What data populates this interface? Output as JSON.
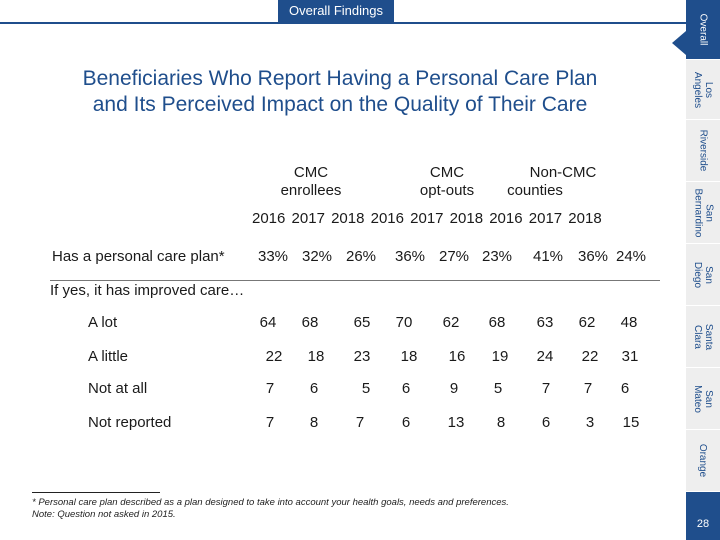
{
  "header": {
    "section_tab": "Overall Findings"
  },
  "title": {
    "line1": "Beneficiaries Who Report Having a Personal Care Plan",
    "line2": "and Its Perceived Impact on the Quality of Their Care"
  },
  "groups": [
    {
      "line1": "CMC",
      "line2": "enrollees"
    },
    {
      "line1": "CMC",
      "line2": "opt-outs"
    },
    {
      "line1": "Non-CMC",
      "line2": "counties"
    }
  ],
  "years_row": "2016 2017 2018 2016 2017 2018 2016 2017 2018",
  "plan_row": {
    "label": "Has a personal care plan*",
    "values": [
      "33%",
      "32%",
      "26%",
      "36%",
      "27%",
      "23%",
      "41%",
      "36%",
      "24%"
    ]
  },
  "subheading": "If yes, it has improved care…",
  "rows": [
    {
      "label": "A lot",
      "values": [
        "64",
        "68",
        "65",
        "70",
        "62",
        "68",
        "63",
        "62",
        "48"
      ]
    },
    {
      "label": "A little",
      "values": [
        "22",
        "18",
        "23",
        "18",
        "16",
        "19",
        "24",
        "22",
        "31"
      ]
    },
    {
      "label": "Not at all",
      "values": [
        "7",
        "6",
        "5",
        "6",
        "9",
        "5",
        "7",
        "7",
        "6"
      ]
    },
    {
      "label": "Not reported",
      "values": [
        "7",
        "8",
        "7",
        "6",
        "13",
        "8",
        "6",
        "3",
        "15"
      ]
    }
  ],
  "footnotes": {
    "line1": "* Personal care plan described as a plan designed to take into account your health goals, needs and preferences.",
    "line2": "Note: Question not asked in 2015."
  },
  "side_tabs": [
    {
      "line1": "Overall",
      "line2": ""
    },
    {
      "line1": "Los",
      "line2": "Angeles"
    },
    {
      "line1": "Riverside",
      "line2": ""
    },
    {
      "line1": "San",
      "line2": "Bernardino"
    },
    {
      "line1": "San",
      "line2": "Diego"
    },
    {
      "line1": "Santa",
      "line2": "Clara"
    },
    {
      "line1": "San",
      "line2": "Mateo"
    },
    {
      "line1": "Orange",
      "line2": ""
    }
  ],
  "page_number": "28",
  "colors": {
    "brand": "#1f4e8c",
    "inactive_tab": "#eeeeee"
  }
}
